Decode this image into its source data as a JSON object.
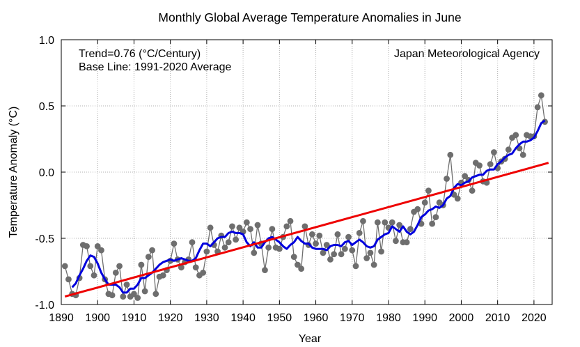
{
  "chart_data": {
    "type": "line",
    "title": "Monthly Global Average Temperature Anomalies in June",
    "xlabel": "Year",
    "ylabel": "Temperature Anomaly (°C)",
    "xlim": [
      1890,
      2025
    ],
    "ylim": [
      -1.0,
      1.0
    ],
    "x_ticks": [
      "1890",
      "1900",
      "1910",
      "1920",
      "1930",
      "1940",
      "1950",
      "1960",
      "1970",
      "1980",
      "1990",
      "2000",
      "2010",
      "2020"
    ],
    "y_ticks": [
      "-1.0",
      "-0.5",
      "0.0",
      "0.5",
      "1.0"
    ],
    "grid": true,
    "annotations": {
      "trend": "Trend=0.76 (°C/Century)",
      "baseline": "Base Line: 1991-2020 Average",
      "source": "Japan Meteorological Agency"
    },
    "colors": {
      "annual": "#6e6e6e",
      "smoothed": "#0000dd",
      "trend": "#ee0000"
    },
    "series": [
      {
        "style": "gray line with circle markers",
        "x_start": 1891,
        "x_step": 1,
        "values": [
          -0.71,
          -0.81,
          -0.92,
          -0.93,
          -0.8,
          -0.55,
          -0.56,
          -0.71,
          -0.78,
          -0.56,
          -0.59,
          -0.81,
          -0.92,
          -0.93,
          -0.76,
          -0.71,
          -0.94,
          -0.85,
          -0.94,
          -0.92,
          -0.95,
          -0.7,
          -0.9,
          -0.64,
          -0.59,
          -0.92,
          -0.79,
          -0.78,
          -0.74,
          -0.67,
          -0.54,
          -0.66,
          -0.72,
          -0.68,
          -0.66,
          -0.53,
          -0.72,
          -0.78,
          -0.76,
          -0.6,
          -0.42,
          -0.55,
          -0.6,
          -0.48,
          -0.57,
          -0.53,
          -0.41,
          -0.51,
          -0.42,
          -0.45,
          -0.38,
          -0.43,
          -0.61,
          -0.4,
          -0.54,
          -0.74,
          -0.57,
          -0.43,
          -0.57,
          -0.58,
          -0.49,
          -0.41,
          -0.37,
          -0.64,
          -0.7,
          -0.73,
          -0.41,
          -0.55,
          -0.47,
          -0.54,
          -0.48,
          -0.61,
          -0.55,
          -0.66,
          -0.62,
          -0.47,
          -0.62,
          -0.58,
          -0.49,
          -0.59,
          -0.71,
          -0.46,
          -0.37,
          -0.65,
          -0.61,
          -0.7,
          -0.38,
          -0.6,
          -0.38,
          -0.42,
          -0.38,
          -0.52,
          -0.4,
          -0.53,
          -0.53,
          -0.43,
          -0.3,
          -0.28,
          -0.39,
          -0.23,
          -0.14,
          -0.39,
          -0.34,
          -0.23,
          -0.25,
          -0.05,
          0.13,
          -0.17,
          -0.2,
          -0.08,
          -0.03,
          -0.06,
          -0.14,
          0.07,
          0.05,
          -0.07,
          -0.08,
          0.06,
          0.15,
          0.03,
          0.08,
          0.1,
          0.17,
          0.26,
          0.28,
          0.18,
          0.13,
          0.28,
          0.27,
          0.27,
          0.49,
          0.58,
          0.38
        ]
      },
      {
        "style": "blue smoothed line",
        "x_start": 1893,
        "x_step": 1,
        "values": [
          -0.87,
          -0.84,
          -0.78,
          -0.73,
          -0.67,
          -0.63,
          -0.64,
          -0.69,
          -0.76,
          -0.81,
          -0.85,
          -0.85,
          -0.85,
          -0.87,
          -0.91,
          -0.91,
          -0.88,
          -0.88,
          -0.85,
          -0.8,
          -0.8,
          -0.78,
          -0.76,
          -0.73,
          -0.7,
          -0.68,
          -0.67,
          -0.66,
          -0.67,
          -0.66,
          -0.65,
          -0.66,
          -0.67,
          -0.67,
          -0.65,
          -0.59,
          -0.54,
          -0.54,
          -0.56,
          -0.53,
          -0.5,
          -0.49,
          -0.49,
          -0.46,
          -0.45,
          -0.46,
          -0.46,
          -0.47,
          -0.53,
          -0.56,
          -0.53,
          -0.57,
          -0.57,
          -0.53,
          -0.5,
          -0.49,
          -0.51,
          -0.53,
          -0.56,
          -0.58,
          -0.55,
          -0.53,
          -0.49,
          -0.52,
          -0.54,
          -0.54,
          -0.57,
          -0.58,
          -0.58,
          -0.58,
          -0.59,
          -0.56,
          -0.55,
          -0.55,
          -0.56,
          -0.53,
          -0.52,
          -0.55,
          -0.53,
          -0.51,
          -0.53,
          -0.56,
          -0.57,
          -0.56,
          -0.51,
          -0.49,
          -0.47,
          -0.46,
          -0.41,
          -0.43,
          -0.45,
          -0.41,
          -0.45,
          -0.47,
          -0.45,
          -0.4,
          -0.34,
          -0.32,
          -0.29,
          -0.28,
          -0.26,
          -0.27,
          -0.25,
          -0.2,
          -0.18,
          -0.12,
          -0.09,
          -0.1,
          -0.08,
          -0.07,
          -0.04,
          -0.03,
          -0.02,
          -0.02,
          0.01,
          0.02,
          0.02,
          0.06,
          0.08,
          0.11,
          0.13,
          0.14,
          0.18,
          0.21,
          0.23,
          0.23,
          0.24,
          0.26,
          0.31,
          0.37,
          0.39
        ]
      },
      {
        "style": "red linear trend",
        "x": [
          1891,
          2024
        ],
        "values": [
          -0.94,
          0.07
        ]
      }
    ]
  }
}
